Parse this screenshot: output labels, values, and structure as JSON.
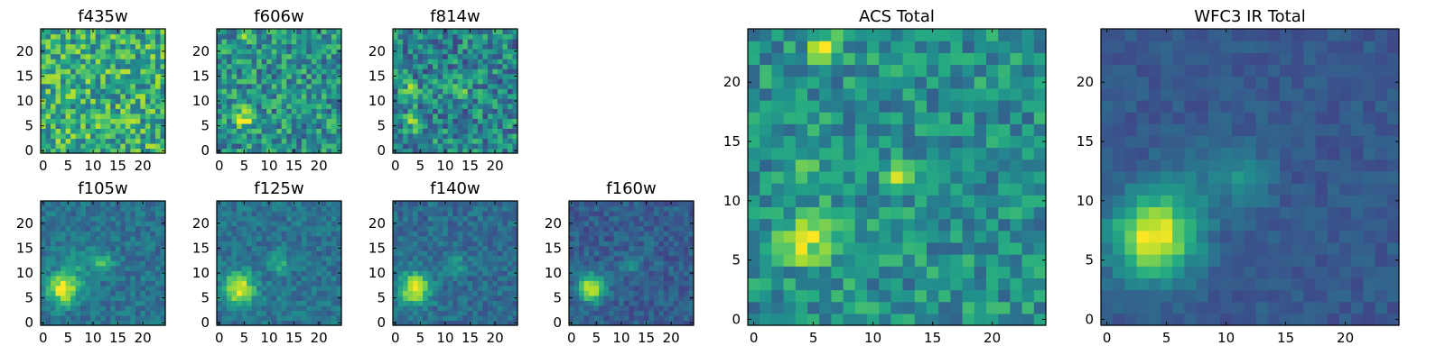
{
  "colormap": "viridis",
  "colors": {
    "low": "#440154",
    "mid": "#21918c",
    "high": "#fde725",
    "frame": "#000000"
  },
  "chart_data": [
    {
      "type": "heatmap",
      "title": "f435w",
      "grid": [
        25,
        25
      ],
      "xticks": [
        "0",
        "5",
        "10",
        "15",
        "20"
      ],
      "yticks": [
        "0",
        "5",
        "10",
        "15",
        "20"
      ],
      "features": {
        "noise": 0.55,
        "base": 0.62,
        "blobs": []
      }
    },
    {
      "type": "heatmap",
      "title": "f606w",
      "grid": [
        25,
        25
      ],
      "xticks": [
        "0",
        "5",
        "10",
        "15",
        "20"
      ],
      "yticks": [
        "0",
        "5",
        "10",
        "15",
        "20"
      ],
      "features": {
        "noise": 0.5,
        "base": 0.5,
        "blobs": [
          {
            "x": 5,
            "y": 7,
            "amp": 0.45,
            "s": 1.6
          },
          {
            "x": 6,
            "y": 23,
            "amp": 0.4,
            "s": 0.8
          }
        ]
      }
    },
    {
      "type": "heatmap",
      "title": "f814w",
      "grid": [
        25,
        25
      ],
      "xticks": [
        "0",
        "5",
        "10",
        "15",
        "20"
      ],
      "yticks": [
        "0",
        "5",
        "10",
        "15",
        "20"
      ],
      "features": {
        "noise": 0.5,
        "base": 0.45,
        "blobs": [
          {
            "x": 3,
            "y": 12,
            "amp": 0.5,
            "s": 1.0
          },
          {
            "x": 13,
            "y": 12,
            "amp": 0.5,
            "s": 0.8
          },
          {
            "x": 4,
            "y": 6,
            "amp": 0.5,
            "s": 1.1
          }
        ]
      }
    },
    {
      "type": "heatmap",
      "title": "f105w",
      "grid": [
        25,
        25
      ],
      "xticks": [
        "0",
        "5",
        "10",
        "15",
        "20"
      ],
      "yticks": [
        "0",
        "5",
        "10",
        "15",
        "20"
      ],
      "features": {
        "noise": 0.22,
        "base": 0.38,
        "blobs": [
          {
            "x": 4,
            "y": 7,
            "amp": 0.62,
            "s": 2.2
          },
          {
            "x": 12,
            "y": 12,
            "amp": 0.3,
            "s": 1.5
          },
          {
            "x": 7,
            "y": 12,
            "amp": 0.15,
            "s": 2.0
          }
        ]
      }
    },
    {
      "type": "heatmap",
      "title": "f125w",
      "grid": [
        25,
        25
      ],
      "xticks": [
        "0",
        "5",
        "10",
        "15",
        "20"
      ],
      "yticks": [
        "0",
        "5",
        "10",
        "15",
        "20"
      ],
      "features": {
        "noise": 0.22,
        "base": 0.38,
        "blobs": [
          {
            "x": 4,
            "y": 7,
            "amp": 0.6,
            "s": 2.2
          },
          {
            "x": 12,
            "y": 12,
            "amp": 0.28,
            "s": 1.5
          }
        ]
      }
    },
    {
      "type": "heatmap",
      "title": "f140w",
      "grid": [
        25,
        25
      ],
      "xticks": [
        "0",
        "5",
        "10",
        "15",
        "20"
      ],
      "yticks": [
        "0",
        "5",
        "10",
        "15",
        "20"
      ],
      "features": {
        "noise": 0.22,
        "base": 0.35,
        "blobs": [
          {
            "x": 4,
            "y": 7,
            "amp": 0.62,
            "s": 2.2
          },
          {
            "x": 12,
            "y": 12,
            "amp": 0.22,
            "s": 1.5
          }
        ]
      }
    },
    {
      "type": "heatmap",
      "title": "f160w",
      "grid": [
        25,
        25
      ],
      "xticks": [
        "0",
        "5",
        "10",
        "15",
        "20"
      ],
      "yticks": [
        "0",
        "5",
        "10",
        "15",
        "20"
      ],
      "features": {
        "noise": 0.2,
        "base": 0.3,
        "blobs": [
          {
            "x": 4,
            "y": 7,
            "amp": 0.66,
            "s": 1.9
          },
          {
            "x": 12,
            "y": 12,
            "amp": 0.2,
            "s": 1.4
          }
        ]
      }
    },
    {
      "type": "heatmap",
      "title": "ACS Total",
      "grid": [
        25,
        25
      ],
      "xticks": [
        "0",
        "5",
        "10",
        "15",
        "20"
      ],
      "yticks": [
        "0",
        "5",
        "10",
        "15",
        "20"
      ],
      "features": {
        "noise": 0.38,
        "base": 0.5,
        "blobs": [
          {
            "x": 5,
            "y": 7,
            "amp": 0.45,
            "s": 1.7
          },
          {
            "x": 6,
            "y": 23,
            "amp": 0.4,
            "s": 0.9
          },
          {
            "x": 4,
            "y": 13,
            "amp": 0.32,
            "s": 0.9
          },
          {
            "x": 12,
            "y": 12,
            "amp": 0.32,
            "s": 0.8
          }
        ]
      }
    },
    {
      "type": "heatmap",
      "title": "WFC3 IR Total",
      "grid": [
        25,
        25
      ],
      "xticks": [
        "0",
        "5",
        "10",
        "15",
        "20"
      ],
      "yticks": [
        "0",
        "5",
        "10",
        "15",
        "20"
      ],
      "features": {
        "noise": 0.12,
        "base": 0.28,
        "blobs": [
          {
            "x": 4,
            "y": 7,
            "amp": 0.72,
            "s": 2.4
          },
          {
            "x": 12,
            "y": 12,
            "amp": 0.22,
            "s": 1.4
          },
          {
            "x": 8,
            "y": 12,
            "amp": 0.1,
            "s": 2.5
          }
        ]
      }
    }
  ]
}
